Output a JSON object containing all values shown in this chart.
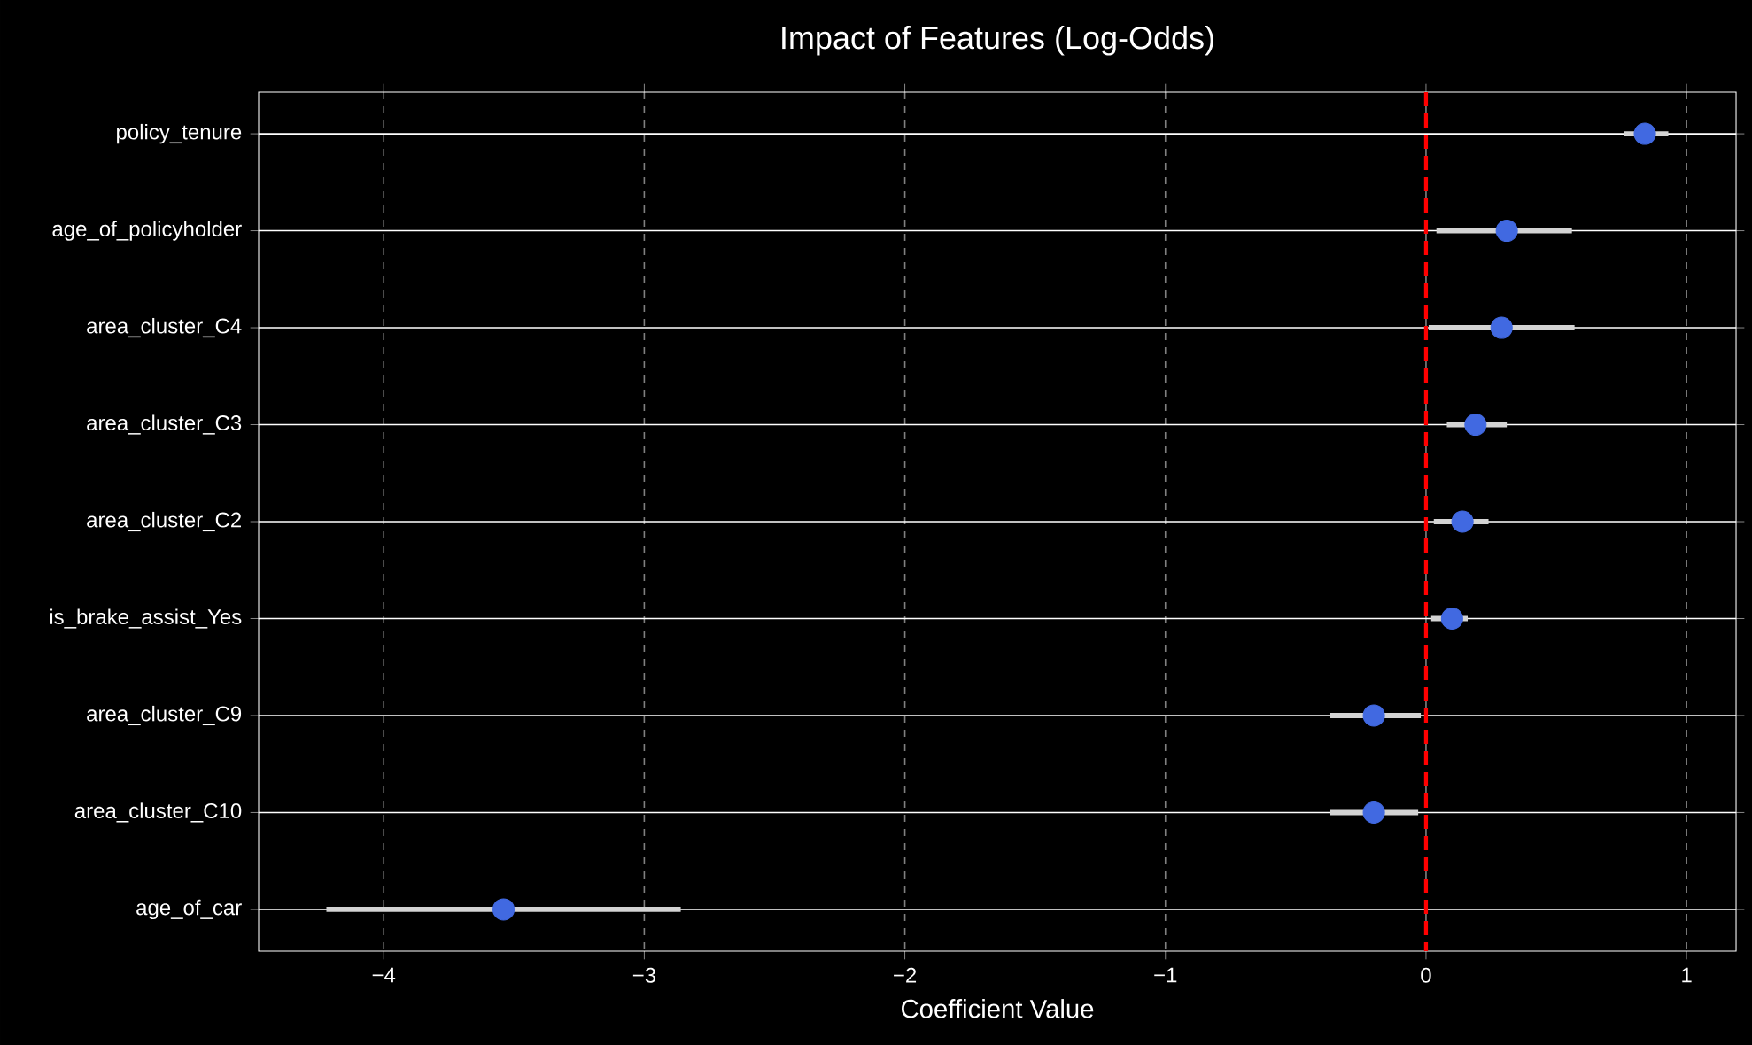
{
  "chart_data": {
    "type": "scatter",
    "title": "Impact of Features (Log-Odds)",
    "xlabel": "Coefficient Value",
    "orientation": "horizontal",
    "categories": [
      "policy_tenure",
      "age_of_policyholder",
      "area_cluster_C4",
      "area_cluster_C3",
      "area_cluster_C2",
      "is_brake_assist_Yes",
      "area_cluster_C9",
      "area_cluster_C10",
      "age_of_car"
    ],
    "values": [
      0.84,
      0.31,
      0.29,
      0.19,
      0.14,
      0.1,
      -0.2,
      -0.2,
      -3.54
    ],
    "errors": [
      [
        0.76,
        0.93
      ],
      [
        0.04,
        0.56
      ],
      [
        0.01,
        0.57
      ],
      [
        0.08,
        0.31
      ],
      [
        0.03,
        0.24
      ],
      [
        0.02,
        0.16
      ],
      [
        -0.37,
        -0.02
      ],
      [
        -0.37,
        -0.03
      ],
      [
        -4.22,
        -2.86
      ]
    ],
    "color": "#4169e1",
    "marker": "circle",
    "xlim": [
      -4.48,
      1.19
    ],
    "xticks": [
      {
        "value": -4,
        "label": "−4"
      },
      {
        "value": -3,
        "label": "−3"
      },
      {
        "value": -2,
        "label": "−2"
      },
      {
        "value": -1,
        "label": "−1"
      },
      0,
      1
    ],
    "ref_lines": [
      {
        "axis": "x",
        "value": 0,
        "color": "#ff0000",
        "line_style": "dashed"
      }
    ],
    "grid": true
  }
}
